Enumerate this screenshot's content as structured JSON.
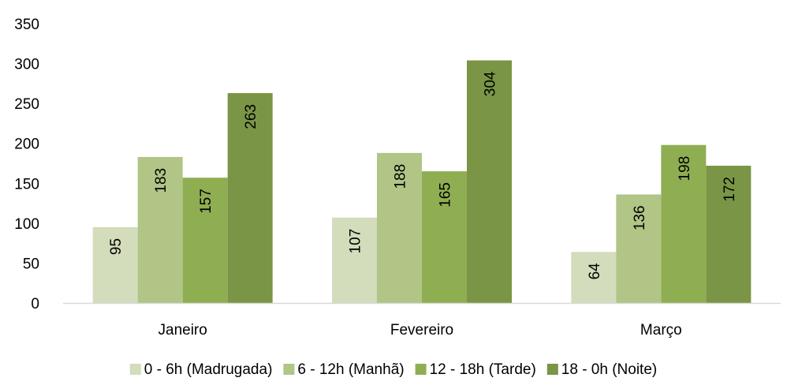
{
  "chart_data": {
    "type": "bar",
    "categories": [
      "Janeiro",
      "Fevereiro",
      "Março"
    ],
    "series": [
      {
        "name": "0 - 6h (Madrugada)",
        "values": [
          95,
          107,
          64
        ],
        "color": "#d3dcbb"
      },
      {
        "name": "6 - 12h (Manhã)",
        "values": [
          183,
          188,
          136
        ],
        "color": "#b0c586"
      },
      {
        "name": "12 - 18h (Tarde)",
        "values": [
          157,
          165,
          198
        ],
        "color": "#8fae52"
      },
      {
        "name": "18 - 0h (Noite)",
        "values": [
          263,
          304,
          172
        ],
        "color": "#7a9545"
      }
    ],
    "yticks": [
      "0",
      "50",
      "100",
      "150",
      "200",
      "250",
      "300",
      "350"
    ],
    "ylim": [
      0,
      350
    ],
    "grid": false,
    "legend_position": "bottom",
    "data_labels": "inside-rotated"
  }
}
